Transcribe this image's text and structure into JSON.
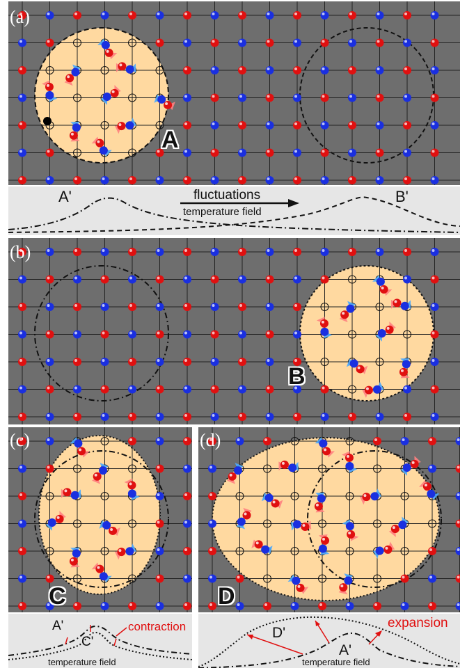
{
  "panels": {
    "a": {
      "label": "(a)",
      "region_letter": "A"
    },
    "b": {
      "label": "(b)",
      "region_letter": "B"
    },
    "c": {
      "label": "(c)",
      "region_letter": "C"
    },
    "d": {
      "label": "(d)",
      "region_letter": "D"
    }
  },
  "strip_a": {
    "peak_left": "A'",
    "peak_right": "B'",
    "arrow_top": "fluctuations",
    "arrow_bottom": "temperature field"
  },
  "strip_c": {
    "peak_outer": "A'",
    "peak_inner": "C'",
    "effect": "contraction",
    "field": "temperature field"
  },
  "strip_d": {
    "peak_outer": "D'",
    "peak_inner": "A'",
    "effect": "expansion",
    "field": "temperature field"
  },
  "colors": {
    "background": "#6e6e6e",
    "region_fill": "#ffd9a0",
    "atom_red": "#e01010",
    "atom_blue": "#1a2fe0",
    "arrow_red": "#ff8080",
    "arrow_blue": "#4aa8ff",
    "annotation": "#e01010"
  }
}
